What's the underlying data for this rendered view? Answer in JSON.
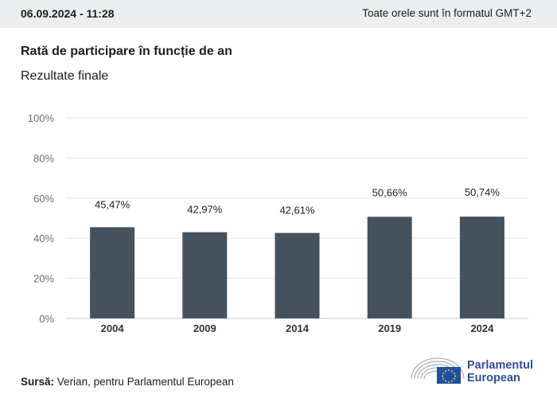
{
  "header": {
    "datetime": "06.09.2024 - 11:28",
    "timezone_note": "Toate orele sunt în formatul GMT+2"
  },
  "footer": {
    "source_label": "Sursă:",
    "source_text": "Verian, pentru Parlamentul European",
    "logo_line1": "Parlamentul",
    "logo_line2": "European"
  },
  "colors": {
    "bar": "#44525e",
    "grid": "#e3e6e8",
    "axis_text": "#6b6f73",
    "logo_blue": "#2f4e9a",
    "eu_flag": "#1f4fa3",
    "eu_stars": "#ffd617"
  },
  "chart_data": {
    "type": "bar",
    "title": "Rată de participare în funcție de an",
    "subtitle": "Rezultate finale",
    "categories": [
      "2004",
      "2009",
      "2014",
      "2019",
      "2024"
    ],
    "values": [
      45.47,
      42.97,
      42.61,
      50.66,
      50.74
    ],
    "value_labels": [
      "45,47%",
      "42,97%",
      "42,61%",
      "50,66%",
      "50,74%"
    ],
    "y_ticks": [
      "0%",
      "20%",
      "40%",
      "60%",
      "80%",
      "100%"
    ],
    "ylim": [
      0,
      100
    ],
    "grid": true
  }
}
